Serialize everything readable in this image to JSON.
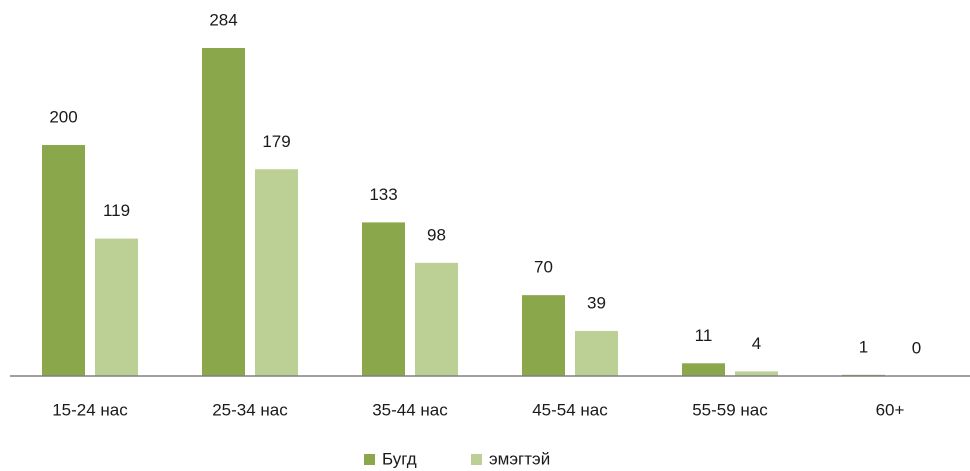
{
  "chart_data": {
    "type": "bar",
    "categories": [
      "15-24 нас",
      "25-34 нас",
      "35-44 нас",
      "45-54 нас",
      "55-59 нас",
      "60+"
    ],
    "series": [
      {
        "name": "Бугд",
        "color": "#8aa84b",
        "values": [
          200,
          284,
          133,
          70,
          11,
          1
        ]
      },
      {
        "name": "эмэгтэй",
        "color": "#bcd096",
        "values": [
          119,
          179,
          98,
          39,
          4,
          0
        ]
      }
    ],
    "legend": "bottom"
  }
}
